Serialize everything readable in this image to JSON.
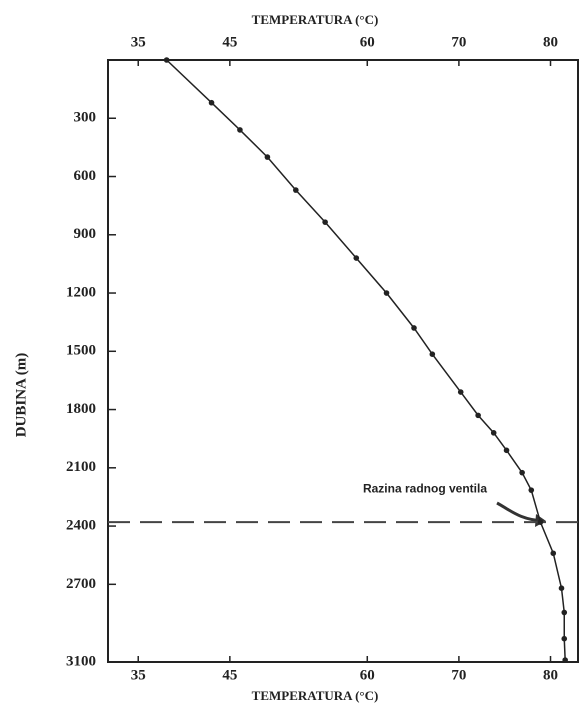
{
  "chart_data": {
    "type": "line",
    "xlabel": "TEMPERATURA (°C)",
    "ylabel": "DUBINA (m)",
    "x": [
      38.1,
      43,
      46.1,
      49.1,
      52.2,
      55.4,
      58.8,
      62.1,
      65.1,
      67.1,
      70.2,
      72.1,
      73.8,
      75.2,
      76.9,
      77.9,
      78.9,
      80.3,
      81.2,
      81.5,
      81.5,
      81.6
    ],
    "values": [
      0,
      220,
      360,
      500,
      670,
      835,
      1020,
      1200,
      1380,
      1515,
      1710,
      1830,
      1920,
      2010,
      2125,
      2215,
      2380,
      2540,
      2720,
      2845,
      2980,
      3090
    ],
    "color": "#222222",
    "xlim": [
      31.7,
      83
    ],
    "ylim": [
      0,
      3100
    ],
    "xticks": [
      35,
      45,
      60,
      70,
      80
    ],
    "yticks": [
      300,
      600,
      900,
      1200,
      1500,
      1800,
      2100,
      2400,
      2700,
      3100
    ],
    "annotations": [
      {
        "text": "Razina radnog ventila",
        "y": 2380
      }
    ]
  }
}
